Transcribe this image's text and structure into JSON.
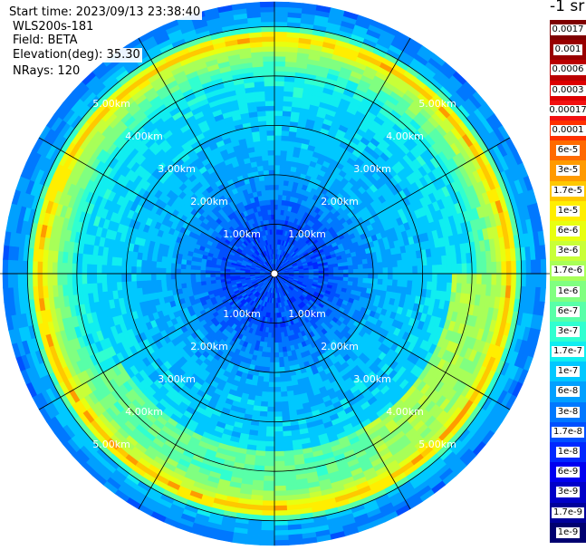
{
  "header": {
    "start_time": "Start time: 2023/09/13 23:38:40",
    "device": "WLS200s-181",
    "field": "Field: BETA",
    "elevation": "Elevation(deg): 35.30",
    "nrays": "NRays: 120"
  },
  "colorbar": {
    "unit_label": "-1 sr",
    "ticks": [
      "0.0017",
      "0.001",
      "0.0006",
      "0.0003",
      "0.00017",
      "0.0001",
      "6e-5",
      "3e-5",
      "1.7e-5",
      "1e-5",
      "6e-6",
      "3e-6",
      "1.7e-6",
      "1e-6",
      "6e-7",
      "3e-7",
      "1.7e-7",
      "1e-7",
      "6e-8",
      "3e-8",
      "1.7e-8",
      "1e-8",
      "6e-9",
      "3e-9",
      "1.7e-9",
      "1e-9"
    ],
    "colors": [
      "#7f0000",
      "#990000",
      "#bb0000",
      "#dd0000",
      "#f21010",
      "#ff3000",
      "#ff6a00",
      "#ff9a00",
      "#ffc800",
      "#ffee00",
      "#e8ff10",
      "#c8ff38",
      "#a8ff58",
      "#80ff80",
      "#58ffa8",
      "#30ffd0",
      "#10eef0",
      "#00c8ff",
      "#00a0ff",
      "#0078ff",
      "#0050ff",
      "#0028ff",
      "#0000f0",
      "#0000c8",
      "#00009a",
      "#000070"
    ]
  },
  "chart_data": {
    "type": "heatmap",
    "projection": "polar",
    "field": "BETA",
    "elevation_deg": 35.3,
    "n_rays": 120,
    "range_rings_km": [
      1,
      2,
      3,
      4,
      5
    ],
    "ring_labels": [
      "1.00km",
      "2.00km",
      "3.00km",
      "4.00km",
      "5.00km"
    ],
    "max_range_km": 5.5,
    "spokes_deg": [
      0,
      30,
      60,
      90,
      120,
      150,
      180,
      210,
      240,
      270,
      300,
      330
    ],
    "color_scale": "log",
    "value_range": [
      1e-09,
      0.0017
    ],
    "radial_profile": [
      {
        "range_km": 0.0,
        "value": 1.7e-08
      },
      {
        "range_km": 1.0,
        "value": 1.7e-08
      },
      {
        "range_km": 2.0,
        "value": 6e-08
      },
      {
        "range_km": 3.0,
        "value": 1e-07
      },
      {
        "range_km": 4.0,
        "value": 1.7e-07
      },
      {
        "range_km": 4.6,
        "value": 3e-06
      },
      {
        "range_km": 4.8,
        "value": 3e-05
      },
      {
        "range_km": 5.0,
        "value": 1e-07
      },
      {
        "range_km": 5.5,
        "value": 3e-08
      }
    ],
    "enhanced_sectors": [
      {
        "azimuth_deg": [
          90,
          150
        ],
        "value": 1.7e-06
      },
      {
        "azimuth_deg": [
          150,
          240
        ],
        "value": 6e-07
      }
    ]
  }
}
